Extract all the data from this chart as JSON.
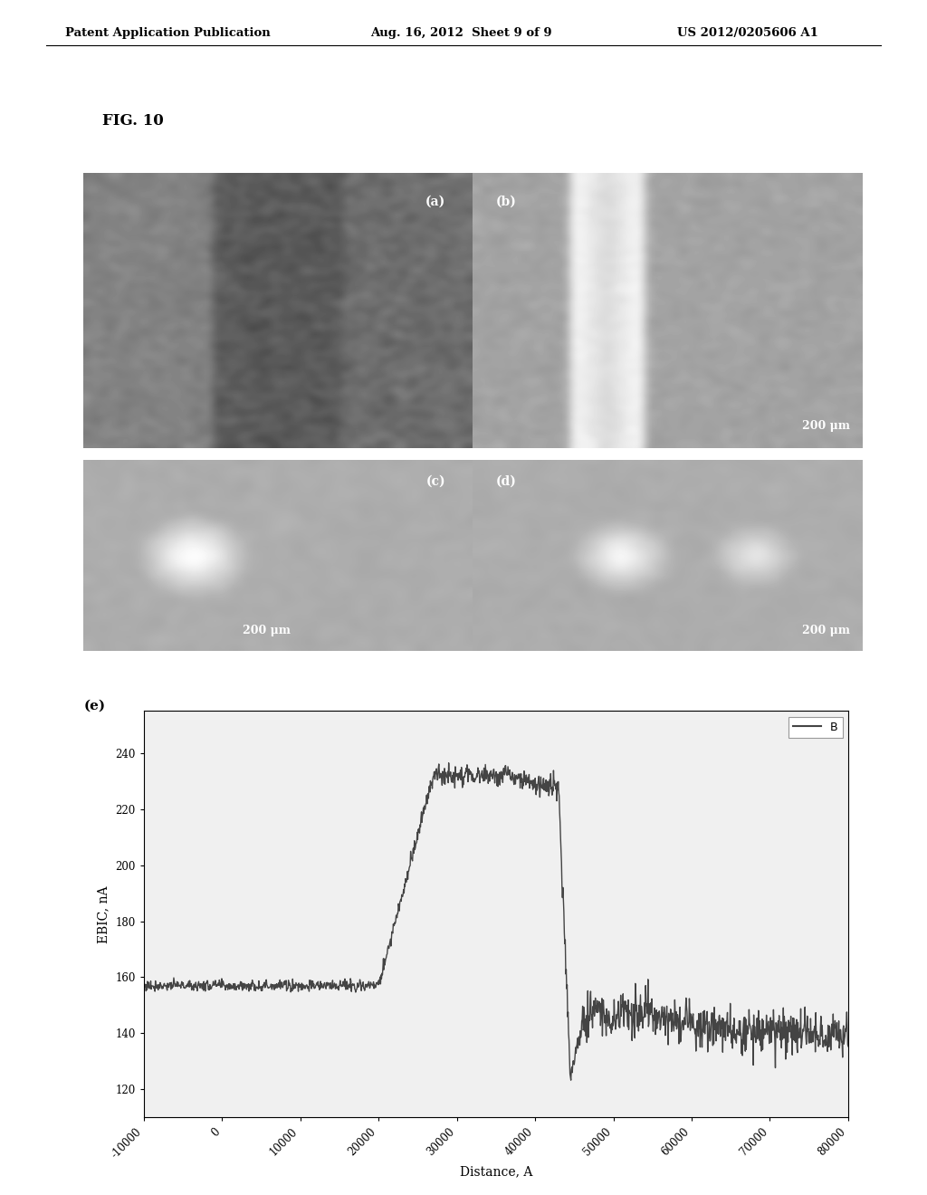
{
  "header_left": "Patent Application Publication",
  "header_mid": "Aug. 16, 2012  Sheet 9 of 9",
  "header_right": "US 2012/0205606 A1",
  "fig_label": "FIG. 10",
  "panel_labels": [
    "(a)",
    "(b)",
    "(c)",
    "(d)"
  ],
  "scale_bar_text_b": "200 μm",
  "scale_bar_text_c": "200 μm",
  "scale_bar_text_d": "200 μm",
  "graph_label": "(e)",
  "graph_legend": "B",
  "xlabel": "Distance, A",
  "ylabel": "EBIC, nA",
  "yticks": [
    120,
    140,
    160,
    180,
    200,
    220,
    240
  ],
  "xticks": [
    -10000,
    0,
    10000,
    20000,
    30000,
    40000,
    50000,
    60000,
    70000,
    80000
  ],
  "xlim": [
    -10000,
    80000
  ],
  "ylim": [
    110,
    255
  ],
  "background_color": "#ffffff",
  "line_color": "#444444",
  "graph_bg": "#f0f0f0"
}
